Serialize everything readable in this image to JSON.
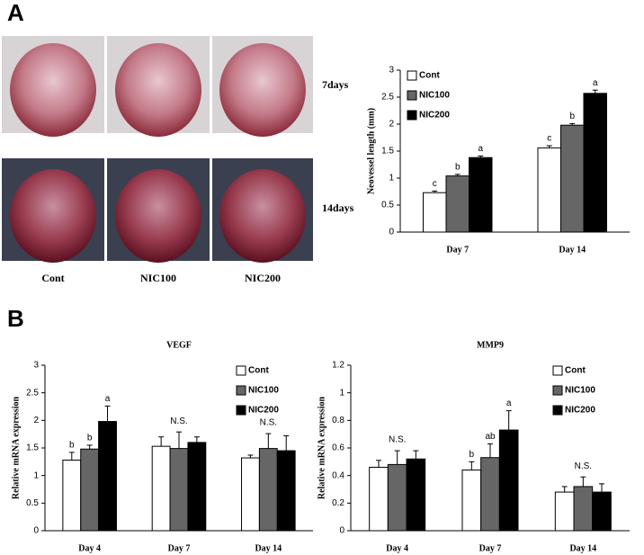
{
  "panels": {
    "a_label": "A",
    "b_label": "B",
    "photo_rows": [
      "7days",
      "14days"
    ],
    "photo_cols": [
      "Cont",
      "NIC100",
      "NIC200"
    ]
  },
  "chart_data": [
    {
      "type": "bar",
      "ylabel": "Neovessel length (mm)",
      "categories": [
        "Day 7",
        "Day 14"
      ],
      "series": [
        {
          "name": "Cont",
          "color": "#ffffff",
          "values": [
            0.73,
            1.56
          ],
          "errors": [
            0.03,
            0.04
          ],
          "letters": [
            "c",
            "c"
          ]
        },
        {
          "name": "NIC100",
          "color": "#666666",
          "values": [
            1.04,
            1.98
          ],
          "errors": [
            0.03,
            0.03
          ],
          "letters": [
            "b",
            "b"
          ]
        },
        {
          "name": "NIC200",
          "color": "#000000",
          "values": [
            1.38,
            2.57
          ],
          "errors": [
            0.03,
            0.06
          ],
          "letters": [
            "a",
            "a"
          ]
        }
      ],
      "ylim": [
        0,
        3
      ],
      "yticks": [
        0,
        0.5,
        1,
        1.5,
        2,
        2.5,
        3
      ],
      "legend": "upper left"
    },
    {
      "type": "bar",
      "title": "VEGF",
      "ylabel": "Relative mRNA expression",
      "categories": [
        "Day 4",
        "Day 7",
        "Day 14"
      ],
      "group_labels": [
        null,
        "N.S.",
        "N.S."
      ],
      "series": [
        {
          "name": "Cont",
          "color": "#ffffff",
          "values": [
            1.28,
            1.53,
            1.32
          ],
          "errors": [
            0.14,
            0.17,
            0.05
          ],
          "letters": [
            "b",
            null,
            null
          ]
        },
        {
          "name": "NIC100",
          "color": "#666666",
          "values": [
            1.48,
            1.49,
            1.49
          ],
          "errors": [
            0.07,
            0.3,
            0.27
          ],
          "letters": [
            "b",
            null,
            null
          ]
        },
        {
          "name": "NIC200",
          "color": "#000000",
          "values": [
            1.98,
            1.6,
            1.45
          ],
          "errors": [
            0.28,
            0.1,
            0.27
          ],
          "letters": [
            "a",
            null,
            null
          ]
        }
      ],
      "ylim": [
        0,
        3
      ],
      "yticks": [
        0,
        0.5,
        1,
        1.5,
        2,
        2.5,
        3
      ],
      "legend": "upper right"
    },
    {
      "type": "bar",
      "title": "MMP9",
      "ylabel": "Relative mRNA expression",
      "categories": [
        "Day 4",
        "Day 7",
        "Day 14"
      ],
      "group_labels": [
        "N.S.",
        null,
        "N.S."
      ],
      "series": [
        {
          "name": "Cont",
          "color": "#ffffff",
          "values": [
            0.46,
            0.44,
            0.28
          ],
          "errors": [
            0.05,
            0.06,
            0.04
          ],
          "letters": [
            null,
            "b",
            null
          ]
        },
        {
          "name": "NIC100",
          "color": "#666666",
          "values": [
            0.48,
            0.53,
            0.32
          ],
          "errors": [
            0.1,
            0.1,
            0.07
          ],
          "letters": [
            null,
            "ab",
            null
          ]
        },
        {
          "name": "NIC200",
          "color": "#000000",
          "values": [
            0.52,
            0.73,
            0.28
          ],
          "errors": [
            0.06,
            0.14,
            0.06
          ],
          "letters": [
            null,
            "a",
            null
          ]
        }
      ],
      "ylim": [
        0,
        1.2
      ],
      "yticks": [
        0,
        0.2,
        0.4,
        0.6,
        0.8,
        1,
        1.2
      ],
      "legend": "upper right"
    }
  ]
}
